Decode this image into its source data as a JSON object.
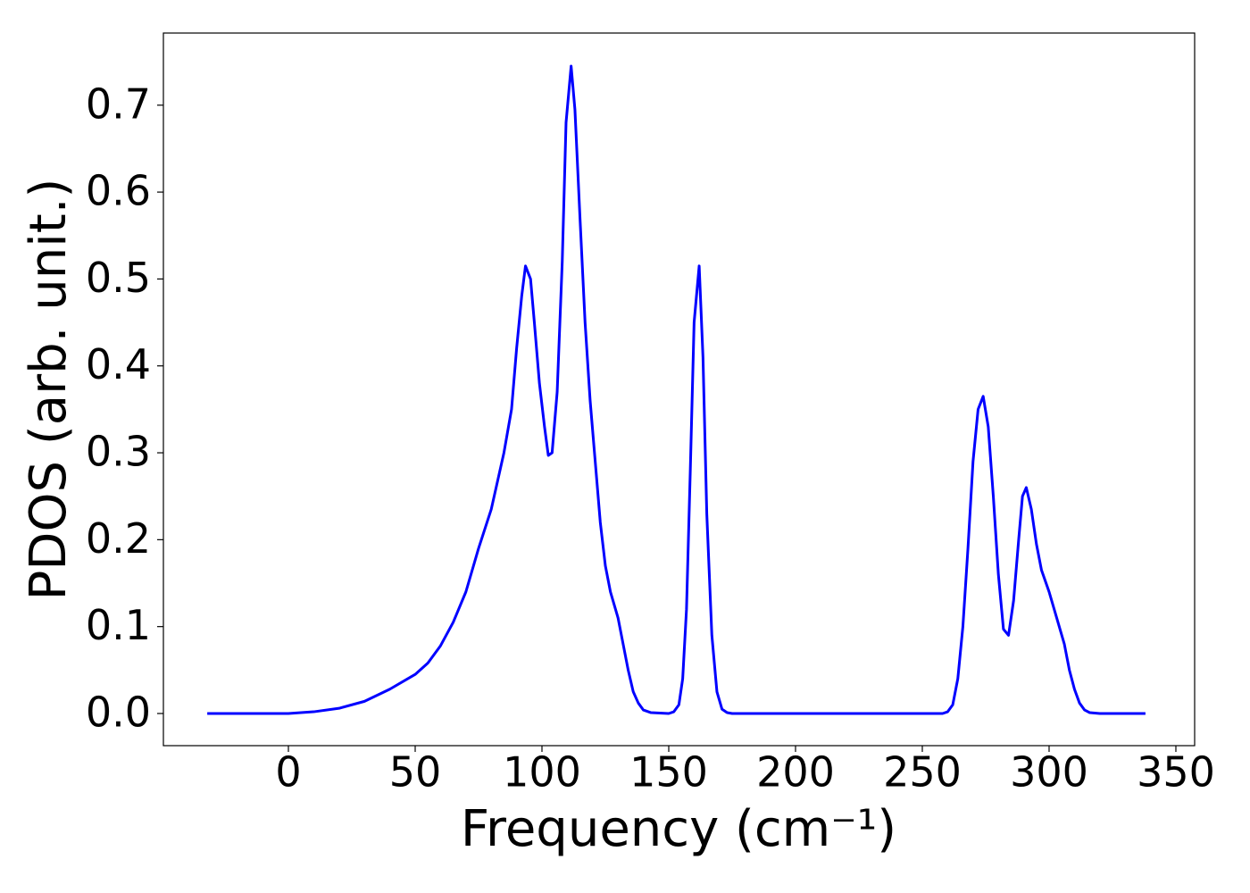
{
  "chart_data": {
    "type": "line",
    "xlabel": "Frequency (cm⁻¹)",
    "ylabel": "PDOS (arb. unit.)",
    "xlim": [
      -49.3,
      357.4
    ],
    "ylim": [
      -0.037,
      0.783
    ],
    "xticks": [
      0,
      50,
      100,
      150,
      200,
      250,
      300,
      350
    ],
    "yticks": [
      {
        "value": 0,
        "label": "0.0"
      },
      0.1,
      0.2,
      0.3,
      0.4,
      0.5,
      0.6,
      0.7
    ],
    "grid": false,
    "series": [
      {
        "color": "#0000ff",
        "x": [
          -32,
          0,
          10,
          20,
          30,
          40,
          50,
          55,
          60,
          65,
          70,
          75,
          80,
          85,
          88,
          90,
          92,
          93.5,
          95.5,
          97,
          99,
          101,
          102.5,
          104,
          106,
          108,
          109.5,
          111.5,
          113,
          115,
          117,
          119,
          121,
          123,
          125,
          127,
          130,
          132,
          134,
          136,
          138,
          140,
          143,
          150,
          152,
          154,
          155.5,
          157,
          158.5,
          160,
          162,
          163.5,
          165,
          167,
          169,
          171,
          173,
          175,
          258,
          260,
          262,
          264,
          266,
          268,
          270,
          272,
          274,
          276,
          278,
          280,
          282,
          284,
          286,
          288,
          289.5,
          291,
          293,
          295,
          297,
          300,
          303,
          306,
          308,
          310,
          312,
          314,
          316,
          320,
          338
        ],
        "values": [
          0,
          0,
          0.002,
          0.006,
          0.014,
          0.028,
          0.045,
          0.058,
          0.078,
          0.105,
          0.14,
          0.19,
          0.235,
          0.3,
          0.35,
          0.42,
          0.48,
          0.515,
          0.5,
          0.45,
          0.38,
          0.33,
          0.297,
          0.3,
          0.37,
          0.52,
          0.68,
          0.745,
          0.695,
          0.57,
          0.45,
          0.36,
          0.29,
          0.22,
          0.17,
          0.14,
          0.11,
          0.08,
          0.05,
          0.025,
          0.012,
          0.004,
          0.001,
          0,
          0.002,
          0.01,
          0.04,
          0.12,
          0.28,
          0.45,
          0.515,
          0.41,
          0.23,
          0.09,
          0.025,
          0.005,
          0.001,
          0,
          0,
          0.002,
          0.01,
          0.04,
          0.1,
          0.19,
          0.29,
          0.35,
          0.365,
          0.33,
          0.25,
          0.16,
          0.097,
          0.09,
          0.13,
          0.2,
          0.25,
          0.26,
          0.235,
          0.195,
          0.165,
          0.14,
          0.11,
          0.08,
          0.05,
          0.028,
          0.012,
          0.004,
          0.001,
          0,
          0
        ]
      }
    ]
  }
}
